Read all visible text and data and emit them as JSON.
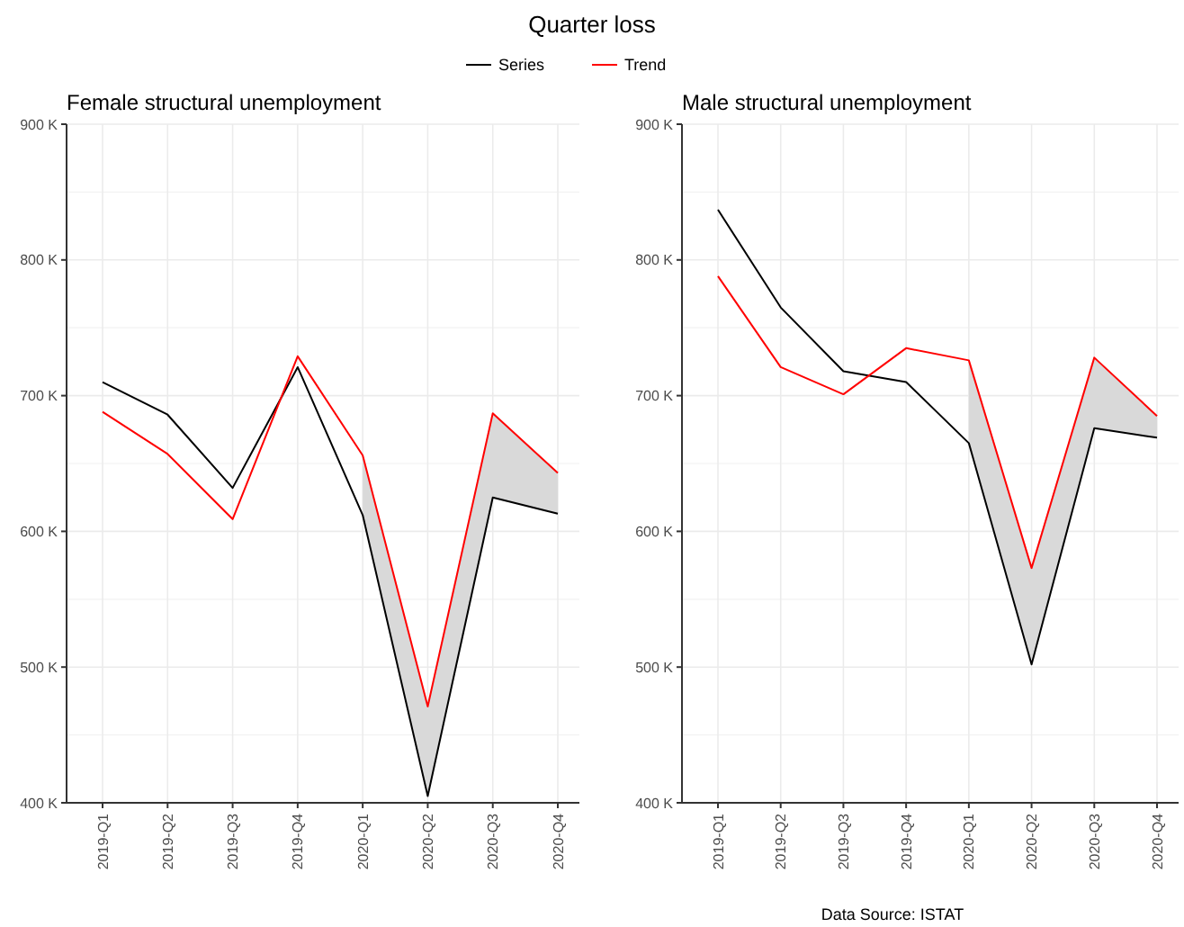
{
  "chart_data": [
    {
      "type": "line",
      "title": "Female structural unemployment",
      "annotations": [
        "Quarter loss"
      ],
      "categories": [
        "2019-Q1",
        "2019-Q2",
        "2019-Q3",
        "2019-Q4",
        "2020-Q1",
        "2020-Q2",
        "2020-Q3",
        "2020-Q4"
      ],
      "ylim": [
        400000,
        900000
      ],
      "yticks": [
        {
          "value": 400000,
          "label": "400 K"
        },
        {
          "value": 500000,
          "label": "500 K"
        },
        {
          "value": 600000,
          "label": "600 K"
        },
        {
          "value": 700000,
          "label": "700 K"
        },
        {
          "value": 800000,
          "label": "800 K"
        },
        {
          "value": 900000,
          "label": "900 K"
        }
      ],
      "grid": true,
      "legend": "top",
      "series": [
        {
          "name": "Series",
          "color": "#000000",
          "values": [
            710000,
            686000,
            632000,
            721000,
            612000,
            405000,
            625000,
            613000
          ]
        },
        {
          "name": "Trend",
          "color": "#ff0000",
          "values": [
            688000,
            657000,
            609000,
            729000,
            656000,
            471000,
            687000,
            643000
          ],
          "lower": [
            null,
            null,
            null,
            null,
            612000,
            405000,
            625000,
            613000
          ],
          "upper": [
            null,
            null,
            null,
            null,
            656000,
            471000,
            687000,
            643000
          ]
        }
      ]
    },
    {
      "type": "line",
      "title": "Male structural unemployment",
      "annotations": [
        "Data Source: ISTAT"
      ],
      "categories": [
        "2019-Q1",
        "2019-Q2",
        "2019-Q3",
        "2019-Q4",
        "2020-Q1",
        "2020-Q2",
        "2020-Q3",
        "2020-Q4"
      ],
      "ylim": [
        400000,
        900000
      ],
      "yticks": [
        {
          "value": 400000,
          "label": "400 K"
        },
        {
          "value": 500000,
          "label": "500 K"
        },
        {
          "value": 600000,
          "label": "600 K"
        },
        {
          "value": 700000,
          "label": "700 K"
        },
        {
          "value": 800000,
          "label": "800 K"
        },
        {
          "value": 900000,
          "label": "900 K"
        }
      ],
      "grid": true,
      "series": [
        {
          "name": "Series",
          "color": "#000000",
          "values": [
            837000,
            765000,
            718000,
            710000,
            665000,
            502000,
            676000,
            669000
          ]
        },
        {
          "name": "Trend",
          "color": "#ff0000",
          "values": [
            788000,
            721000,
            701000,
            735000,
            726000,
            573000,
            728000,
            685000
          ],
          "lower": [
            null,
            null,
            null,
            null,
            665000,
            502000,
            676000,
            669000
          ],
          "upper": [
            null,
            null,
            null,
            null,
            726000,
            573000,
            728000,
            685000
          ]
        }
      ]
    }
  ]
}
